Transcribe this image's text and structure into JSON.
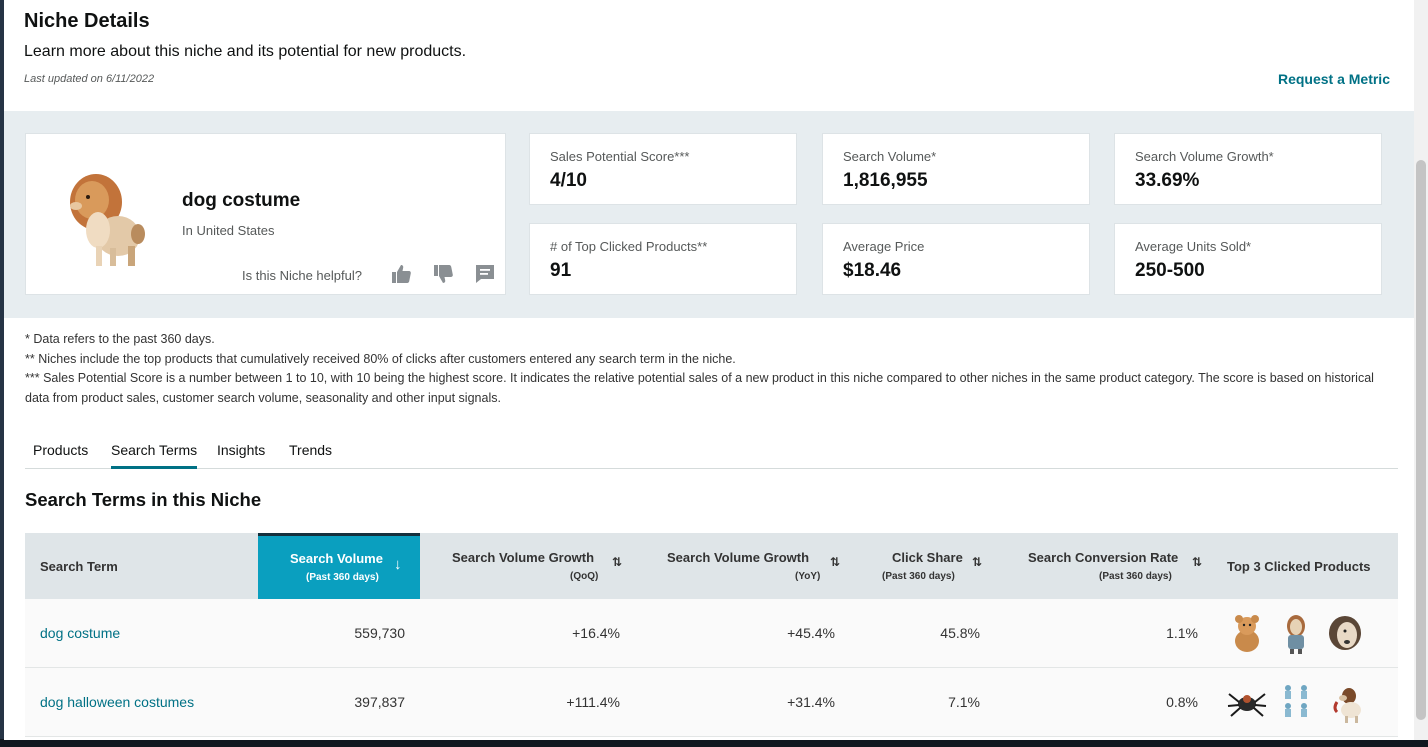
{
  "header": {
    "title": "Niche Details",
    "subtitle": "Learn more about this niche and its potential for new products.",
    "last_updated": "Last updated on 6/11/2022",
    "request_metric": "Request a Metric"
  },
  "niche": {
    "name": "dog costume",
    "country": "In United States",
    "helpful_prompt": "Is this Niche helpful?"
  },
  "metrics": [
    {
      "label": "Sales Potential Score***",
      "value": "4/10"
    },
    {
      "label": "Search Volume*",
      "value": "1,816,955"
    },
    {
      "label": "Search Volume Growth*",
      "value": "33.69%"
    },
    {
      "label": "# of Top Clicked Products**",
      "value": "91"
    },
    {
      "label": "Average Price",
      "value": "$18.46"
    },
    {
      "label": "Average Units Sold*",
      "value": "250-500"
    }
  ],
  "notes": {
    "line1": "* Data refers to the past 360 days.",
    "line2": "** Niches include the top products that cumulatively received 80% of clicks after customers entered any search term in the niche.",
    "line3": "*** Sales Potential Score is a number between 1 to 10, with 10 being the highest score. It indicates the relative potential sales of a new product in this niche compared to other niches in the same product category. The score is based on historical data from product sales, customer search volume, seasonality and other input signals."
  },
  "tabs": [
    {
      "label": "Products"
    },
    {
      "label": "Search Terms"
    },
    {
      "label": "Insights"
    },
    {
      "label": "Trends"
    }
  ],
  "section_title": "Search Terms in this Niche",
  "table": {
    "headers": [
      {
        "main": "Search Term",
        "sub": ""
      },
      {
        "main": "Search Volume",
        "sub": "(Past 360 days)"
      },
      {
        "main": "Search Volume Growth",
        "sub": "(QoQ)"
      },
      {
        "main": "Search Volume Growth",
        "sub": "(YoY)"
      },
      {
        "main": "Click Share",
        "sub": "(Past 360 days)"
      },
      {
        "main": "Search Conversion Rate",
        "sub": "(Past 360 days)"
      },
      {
        "main": "Top 3 Clicked Products",
        "sub": ""
      }
    ],
    "rows": [
      {
        "term": "dog costume",
        "volume": "559,730",
        "qoq": "+16.4%",
        "yoy": "+45.4%",
        "click_share": "45.8%",
        "conversion": "1.1%"
      },
      {
        "term": "dog halloween costumes",
        "volume": "397,837",
        "qoq": "+111.4%",
        "yoy": "+31.4%",
        "click_share": "7.1%",
        "conversion": "0.8%"
      }
    ]
  },
  "colors": {
    "link": "#007185",
    "active_header": "#0a9fbf",
    "band": "#e7edf0"
  },
  "icons": [
    "thumbs-up-icon",
    "thumbs-down-icon",
    "comment-icon",
    "sort-desc-icon",
    "sort-icon"
  ]
}
